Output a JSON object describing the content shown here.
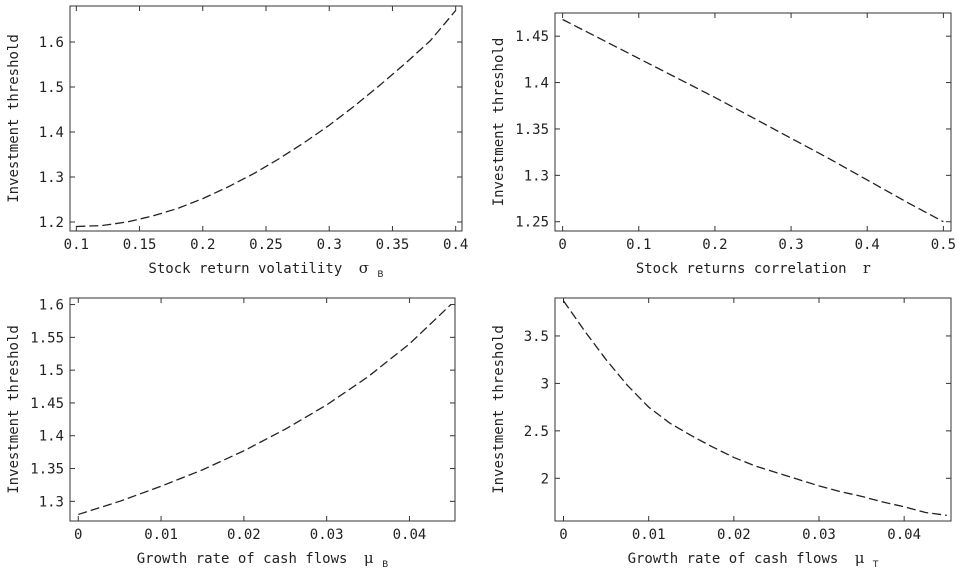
{
  "chart_data": [
    {
      "type": "line",
      "xlabel": "Stock return volatility",
      "xlabel_symbol": "σ",
      "xlabel_sub": "B",
      "ylabel": "Investment threshold",
      "xlim": [
        0.095,
        0.405
      ],
      "ylim": [
        1.18,
        1.68
      ],
      "xticks": [
        "0.1",
        "0.15",
        "0.2",
        "0.25",
        "0.3",
        "0.35",
        "0.4"
      ],
      "xtick_values": [
        0.1,
        0.15,
        0.2,
        0.25,
        0.3,
        0.35,
        0.4
      ],
      "yticks": [
        "1.2",
        "1.3",
        "1.4",
        "1.5",
        "1.6"
      ],
      "ytick_values": [
        1.2,
        1.3,
        1.4,
        1.5,
        1.6
      ],
      "series": [
        {
          "x": [
            0.1,
            0.12,
            0.14,
            0.16,
            0.18,
            0.2,
            0.22,
            0.24,
            0.26,
            0.28,
            0.3,
            0.32,
            0.34,
            0.36,
            0.38,
            0.4
          ],
          "y": [
            1.19,
            1.192,
            1.2,
            1.213,
            1.23,
            1.252,
            1.278,
            1.307,
            1.34,
            1.376,
            1.415,
            1.458,
            1.504,
            1.552,
            1.603,
            1.67
          ]
        }
      ]
    },
    {
      "type": "line",
      "xlabel": "Stock returns correlation",
      "xlabel_symbol": "r",
      "xlabel_sub": "",
      "ylabel": "Investment threshold",
      "xlim": [
        -0.01,
        0.51
      ],
      "ylim": [
        1.24,
        1.475
      ],
      "xticks": [
        "0",
        "0.1",
        "0.2",
        "0.3",
        "0.4",
        "0.5"
      ],
      "xtick_values": [
        0,
        0.1,
        0.2,
        0.3,
        0.4,
        0.5
      ],
      "yticks": [
        "1.25",
        "1.3",
        "1.35",
        "1.4",
        "1.45"
      ],
      "ytick_values": [
        1.25,
        1.3,
        1.35,
        1.4,
        1.45
      ],
      "series": [
        {
          "x": [
            0,
            0.05,
            0.1,
            0.15,
            0.2,
            0.25,
            0.3,
            0.35,
            0.4,
            0.45,
            0.5
          ],
          "y": [
            1.468,
            1.447,
            1.426,
            1.405,
            1.384,
            1.362,
            1.34,
            1.318,
            1.295,
            1.272,
            1.25
          ]
        }
      ]
    },
    {
      "type": "line",
      "xlabel": "Growth rate of cash flows",
      "xlabel_symbol": "μ",
      "xlabel_sub": "B",
      "ylabel": "Investment threshold",
      "xlim": [
        -0.001,
        0.0455
      ],
      "ylim": [
        1.27,
        1.61
      ],
      "xticks": [
        "0",
        "0.01",
        "0.02",
        "0.03",
        "0.04"
      ],
      "xtick_values": [
        0,
        0.01,
        0.02,
        0.03,
        0.04
      ],
      "yticks": [
        "1.3",
        "1.35",
        "1.4",
        "1.45",
        "1.5",
        "1.55",
        "1.6"
      ],
      "ytick_values": [
        1.3,
        1.35,
        1.4,
        1.45,
        1.5,
        1.55,
        1.6
      ],
      "series": [
        {
          "x": [
            0,
            0.005,
            0.01,
            0.015,
            0.02,
            0.025,
            0.03,
            0.035,
            0.04,
            0.045
          ],
          "y": [
            1.28,
            1.3,
            1.323,
            1.348,
            1.377,
            1.41,
            1.447,
            1.49,
            1.54,
            1.6
          ]
        }
      ]
    },
    {
      "type": "line",
      "xlabel": "Growth rate of cash flows",
      "xlabel_symbol": "μ",
      "xlabel_sub": "T",
      "ylabel": "Investment threshold",
      "xlim": [
        -0.001,
        0.0455
      ],
      "ylim": [
        1.55,
        3.9
      ],
      "xticks": [
        "0",
        "0.01",
        "0.02",
        "0.03",
        "0.04"
      ],
      "xtick_values": [
        0,
        0.01,
        0.02,
        0.03,
        0.04
      ],
      "yticks": [
        "2",
        "2.5",
        "3",
        "3.5"
      ],
      "ytick_values": [
        2,
        2.5,
        3,
        3.5
      ],
      "series": [
        {
          "x": [
            0,
            0.0025,
            0.005,
            0.0075,
            0.01,
            0.0125,
            0.015,
            0.0175,
            0.02,
            0.0225,
            0.025,
            0.0275,
            0.03,
            0.0325,
            0.035,
            0.0375,
            0.04,
            0.0425,
            0.045
          ],
          "y": [
            3.87,
            3.55,
            3.25,
            2.98,
            2.75,
            2.58,
            2.45,
            2.33,
            2.22,
            2.13,
            2.06,
            1.99,
            1.92,
            1.86,
            1.81,
            1.75,
            1.7,
            1.64,
            1.61
          ]
        }
      ]
    }
  ]
}
